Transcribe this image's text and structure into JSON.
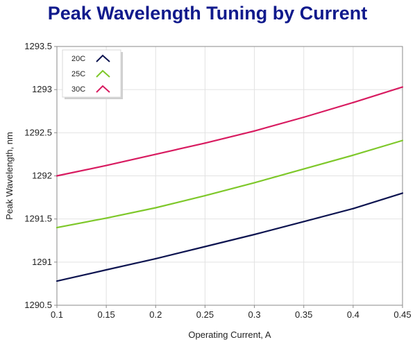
{
  "chart_data": {
    "type": "line",
    "title": "Peak Wavelength Tuning by Current",
    "xlabel": "Operating Current, A",
    "ylabel": "Peak Wavelength, nm",
    "xlim": [
      0.1,
      0.45
    ],
    "ylim": [
      1290.5,
      1293.5
    ],
    "x_ticks": [
      "0.1",
      "0.15",
      "0.2",
      "0.25",
      "0.3",
      "0.35",
      "0.4",
      "0.45"
    ],
    "y_ticks": [
      "1290.5",
      "1291",
      "1291.5",
      "1292",
      "1292.5",
      "1293",
      "1293.5"
    ],
    "grid": true,
    "legend_position": "top-left",
    "x": [
      0.1,
      0.15,
      0.2,
      0.25,
      0.3,
      0.35,
      0.4,
      0.45
    ],
    "series": [
      {
        "name": "20C",
        "color": "#0d1450",
        "values": [
          1290.78,
          1290.91,
          1291.04,
          1291.18,
          1291.32,
          1291.47,
          1291.62,
          1291.8
        ]
      },
      {
        "name": "25C",
        "color": "#7ec82a",
        "values": [
          1291.4,
          1291.51,
          1291.63,
          1291.77,
          1291.92,
          1292.08,
          1292.24,
          1292.41
        ]
      },
      {
        "name": "30C",
        "color": "#d81b60",
        "values": [
          1292.0,
          1292.12,
          1292.25,
          1292.38,
          1292.52,
          1292.68,
          1292.85,
          1293.03
        ]
      }
    ]
  }
}
